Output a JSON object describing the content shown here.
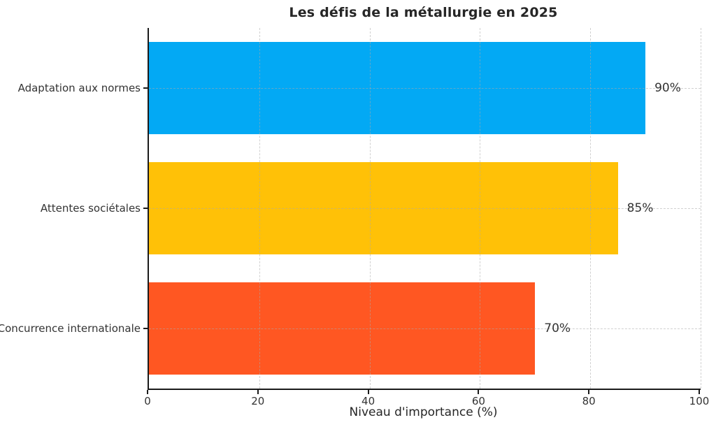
{
  "chart_data": {
    "type": "bar",
    "orientation": "horizontal",
    "title": "Les défis de la métallurgie en 2025",
    "categories": [
      "Adaptation aux normes",
      "Attentes sociétales",
      "Concurrence internationale"
    ],
    "values": [
      90,
      85,
      70
    ],
    "value_labels": [
      "90%",
      "85%",
      "70%"
    ],
    "bar_colors": [
      "#03a9f4",
      "#ffc107",
      "#ff5722"
    ],
    "xlabel": "Niveau d'importance (%)",
    "xlim": [
      0,
      100
    ],
    "xticks": [
      0,
      20,
      40,
      60,
      80,
      100
    ],
    "xtick_labels": [
      "0",
      "20",
      "40",
      "60",
      "80",
      "100"
    ],
    "grid": {
      "style": "dashed",
      "vertical_at": [
        20,
        40,
        60,
        80,
        100
      ],
      "horizontal_at_bar_centers": true
    },
    "legend": "none",
    "background_color": "#ffffff",
    "text_color": "#333333",
    "spine_color": "#1a1a1a"
  }
}
